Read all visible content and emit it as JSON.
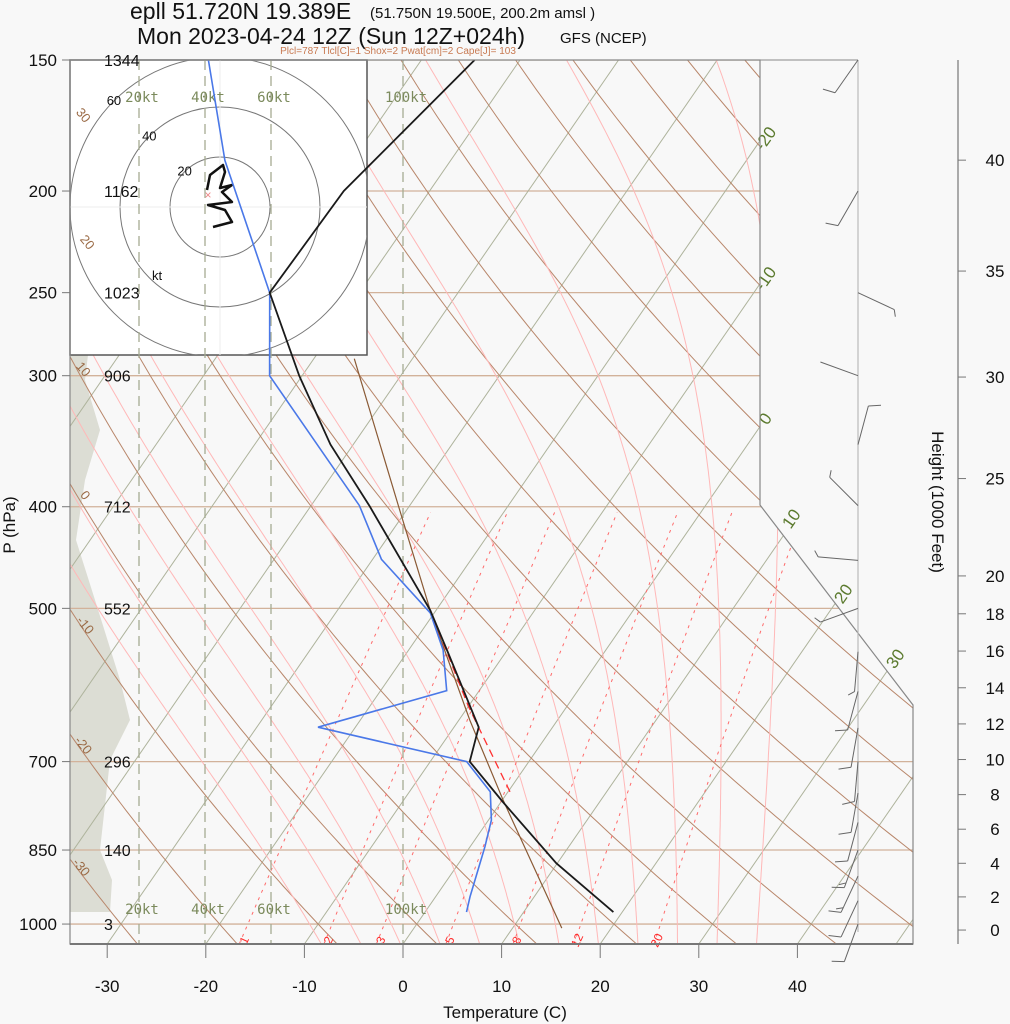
{
  "header": {
    "station": "epll 51.720N 19.389E",
    "grid_point": "(51.750N 19.500E, 200.2m amsl )",
    "time": "Mon 2023-04-24 12Z (Sun 12Z+024h)",
    "model": "GFS (NCEP)",
    "stats": "Plcl=787 Tlcl[C]=1 Shox=2 Pwat[cm]=2 Cape[J]= 103"
  },
  "colors": {
    "temperature": "#1a1a1a",
    "dewpoint": "#4a78e8",
    "parcel": "#8a5a35",
    "parcel_virtual": "#ff3030",
    "isobar": "#d2b29a",
    "isotherm": "#aeb39c",
    "dry_adiabat": "#b8866a",
    "moist_adiabat": "#ffb8b8",
    "mixing_ratio": "#ff6a6a",
    "shade": "#dcddd4"
  },
  "chart_data": {
    "type": "line",
    "subtype": "skew-T log-p",
    "xlabel": "Temperature (C)",
    "ylabel": "P (hPa)",
    "y2label": "Height (1000 Feet)",
    "xlim": [
      -33,
      52
    ],
    "ylim": [
      1045,
      150
    ],
    "x_ticks": [
      -30,
      -20,
      -10,
      0,
      10,
      20,
      30,
      40
    ],
    "pressure_ticks": [
      150,
      200,
      250,
      300,
      400,
      500,
      700,
      850,
      1000
    ],
    "height_ticks_kft": [
      0,
      2,
      4,
      6,
      8,
      10,
      12,
      14,
      16,
      18,
      20,
      25,
      30,
      35,
      40
    ],
    "geopotential_labels": [
      {
        "p": 150,
        "label": "1344"
      },
      {
        "p": 200,
        "label": "1162"
      },
      {
        "p": 250,
        "label": "1023"
      },
      {
        "p": 300,
        "label": "906"
      },
      {
        "p": 400,
        "label": "712"
      },
      {
        "p": 500,
        "label": "552"
      },
      {
        "p": 700,
        "label": "296"
      },
      {
        "p": 850,
        "label": "140"
      },
      {
        "p": 1000,
        "label": "3"
      }
    ],
    "isotherm_labels": [
      "-20",
      "-10",
      "0",
      "10",
      "20",
      "30"
    ],
    "dry_adiabat_labels": [
      "30",
      "20",
      "10",
      "0",
      "-10",
      "-20",
      "-30"
    ],
    "mixing_ratio_labels": [
      "1",
      "2",
      "3",
      "5",
      "8",
      "12",
      "20"
    ],
    "mixing_ratio_values": [
      1,
      2,
      3,
      5,
      8,
      12,
      20
    ],
    "series": [
      {
        "name": "temperature",
        "p": [
          974,
          875,
          765,
          700,
          649,
          548,
          502,
          399,
          349,
          300,
          250,
          200,
          150
        ],
        "T": [
          19.1,
          9.9,
          0.2,
          -6.0,
          -7.5,
          -16.1,
          -20.6,
          -34.1,
          -42.3,
          -50.3,
          -59.1,
          -58.7,
          -54.6
        ]
      },
      {
        "name": "dewpoint",
        "p": [
          974,
          942,
          844,
          796,
          748,
          700,
          649,
          599,
          548,
          505,
          449,
          399,
          300,
          250,
          187,
          150
        ],
        "T": [
          4.2,
          3.5,
          1.5,
          0.3,
          -1.8,
          -6.3,
          -23.8,
          -13.3,
          -16.5,
          -20.4,
          -29.1,
          -35.1,
          -53.3,
          -59.1,
          -72.9,
          -81.6
        ]
      },
      {
        "name": "parcel",
        "p": [
          1009,
          762,
          639,
          502,
          403,
          289
        ],
        "T": [
          15.0,
          0.1,
          -8.9,
          -20.6,
          -30.7,
          -45.9
        ]
      },
      {
        "name": "parcel_virtual",
        "p": [
          748,
          620,
          502
        ],
        "T": [
          0.2,
          -10.0,
          -20.6
        ]
      }
    ],
    "hodograph": {
      "rings_kt": [
        "20",
        "40",
        "60"
      ],
      "unit": "kt",
      "u": [
        -5.2,
        -4,
        1.2,
        2,
        0,
        4.8,
        0.8,
        4.8,
        -4.8,
        2,
        4.8,
        -2.8
      ],
      "v": [
        6.8,
        12.8,
        16.8,
        14,
        7.6,
        8.8,
        6,
        2,
        0.8,
        -1.2,
        -6,
        -8
      ]
    },
    "speed_lines": [
      {
        "label": "20kt"
      },
      {
        "label": "40kt"
      },
      {
        "label": "60kt"
      },
      {
        "label": "100kt"
      }
    ],
    "wind_barbs": [
      {
        "p": 150,
        "dir": 215,
        "speed": 10
      },
      {
        "p": 200,
        "dir": 210,
        "speed": 10
      },
      {
        "p": 250,
        "dir": 115,
        "speed": 5
      },
      {
        "p": 300,
        "dir": 290,
        "speed": 3
      },
      {
        "p": 349,
        "dir": 15,
        "speed": 10
      },
      {
        "p": 399,
        "dir": 315,
        "speed": 5
      },
      {
        "p": 450,
        "dir": 275,
        "speed": 5
      },
      {
        "p": 500,
        "dir": 250,
        "speed": 5
      },
      {
        "p": 550,
        "dir": 185,
        "speed": 5
      },
      {
        "p": 600,
        "dir": 195,
        "speed": 10
      },
      {
        "p": 650,
        "dir": 190,
        "speed": 10
      },
      {
        "p": 700,
        "dir": 185,
        "speed": 10
      },
      {
        "p": 750,
        "dir": 190,
        "speed": 10
      },
      {
        "p": 800,
        "dir": 195,
        "speed": 10
      },
      {
        "p": 850,
        "dir": 200,
        "speed": 15
      },
      {
        "p": 900,
        "dir": 205,
        "speed": 15
      },
      {
        "p": 950,
        "dir": 205,
        "speed": 10
      },
      {
        "p": 1000,
        "dir": 200,
        "speed": 10
      }
    ]
  }
}
